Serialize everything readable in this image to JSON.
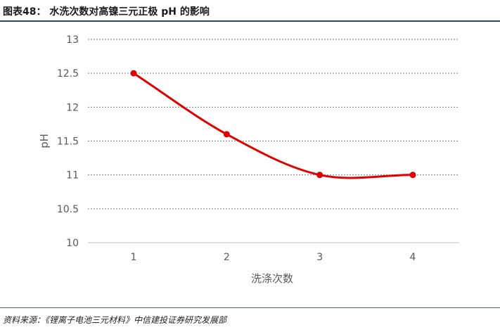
{
  "header": {
    "text": "图表48：  水洗次数对高镍三元正极 pH 的影响"
  },
  "footer": {
    "text": "资料来源：《锂离子电池三元材料》中信建投证券研究发展部"
  },
  "chart_data": {
    "type": "line",
    "x": [
      1,
      2,
      3,
      4
    ],
    "categories": [
      "1",
      "2",
      "3",
      "4"
    ],
    "series": [
      {
        "values": [
          12.5,
          11.6,
          11.0,
          11.0
        ],
        "color": "#e00000"
      }
    ],
    "xlabel": "洗涤次数",
    "ylabel": "pH",
    "ylim": [
      10,
      13
    ],
    "yticks": [
      "10",
      "10.5",
      "11",
      "11.5",
      "12",
      "12.5",
      "13"
    ],
    "grid": "horizontal dashed",
    "smooth": true
  }
}
